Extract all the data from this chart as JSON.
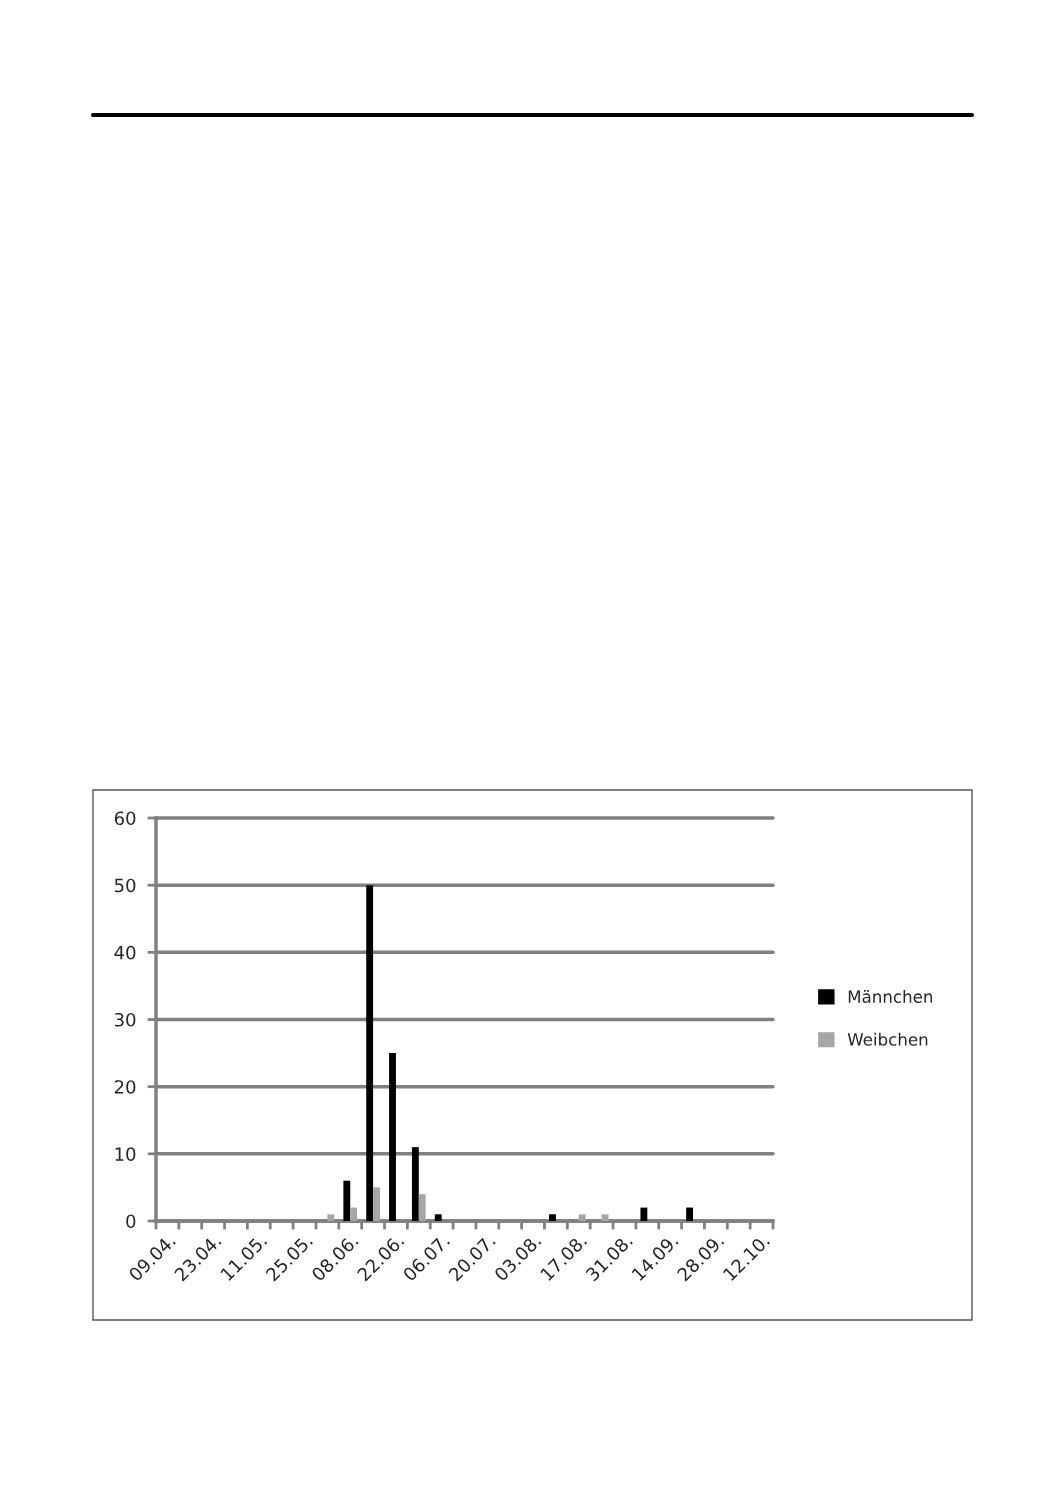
{
  "chart_data": {
    "type": "bar",
    "categories": [
      "09.04.",
      null,
      "23.04.",
      null,
      "11.05.",
      null,
      "25.05.",
      null,
      "08.06.",
      null,
      "22.06.",
      null,
      "06.07.",
      null,
      "20.07.",
      null,
      "03.08.",
      null,
      "17.08.",
      null,
      "31.08.",
      null,
      "14.09.",
      null,
      "28.09.",
      null,
      "12.10."
    ],
    "series": [
      {
        "name": "Männchen",
        "color": "#000000",
        "values": [
          0,
          0,
          0,
          0,
          0,
          0,
          0,
          0,
          6,
          50,
          25,
          11,
          1,
          0,
          0,
          0,
          0,
          1,
          0,
          0,
          0,
          2,
          0,
          2,
          0,
          0,
          0
        ]
      },
      {
        "name": "Weibchen",
        "color": "#a6a6a6",
        "values": [
          0,
          0,
          0,
          0,
          0,
          0,
          0,
          1,
          2,
          5,
          0,
          4,
          0,
          0,
          0,
          0,
          0,
          0,
          1,
          1,
          0,
          0,
          0,
          0,
          0,
          0,
          0
        ]
      }
    ],
    "ylim": [
      0,
      60
    ],
    "yticks": [
      0,
      10,
      20,
      30,
      40,
      50,
      60
    ],
    "grid": "y",
    "legend": "right"
  }
}
